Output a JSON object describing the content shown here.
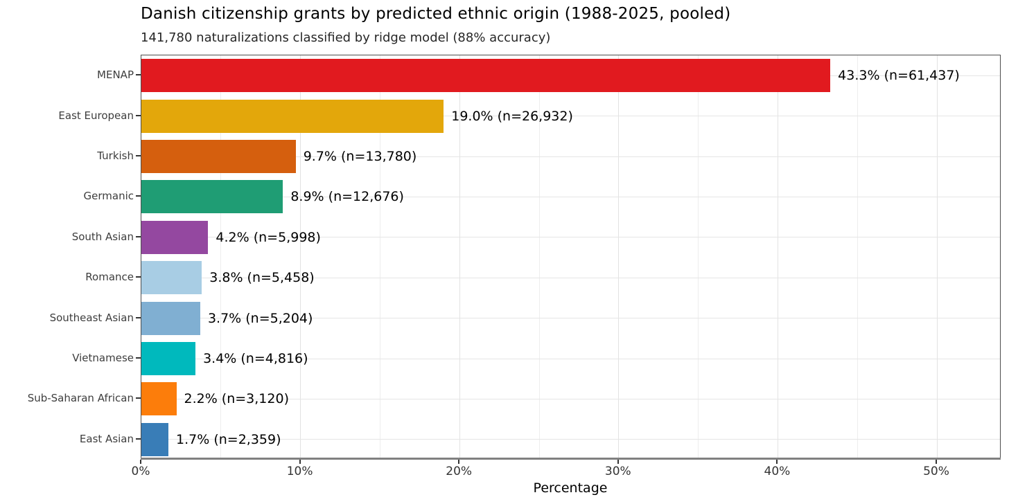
{
  "chart_data": {
    "type": "bar",
    "orientation": "horizontal",
    "title": "Danish citizenship grants by predicted ethnic origin (1988-2025, pooled)",
    "subtitle": "141,780 naturalizations classified by ridge model (88% accuracy)",
    "xlabel": "Percentage",
    "ylabel": "",
    "xlim": [
      0,
      54.05
    ],
    "grid": true,
    "legend_position": "none",
    "categories": [
      "MENAP",
      "East European",
      "Turkish",
      "Germanic",
      "South Asian",
      "Romance",
      "Southeast Asian",
      "Vietnamese",
      "Sub-Saharan African",
      "East Asian"
    ],
    "values": [
      43.3,
      19.0,
      9.7,
      8.9,
      4.2,
      3.8,
      3.7,
      3.4,
      2.2,
      1.7
    ],
    "counts": [
      61437,
      26932,
      13780,
      12676,
      5998,
      5458,
      5204,
      4816,
      3120,
      2359
    ],
    "bar_labels": [
      "43.3% (n=61,437)",
      "19.0% (n=26,932)",
      "9.7% (n=13,780)",
      "8.9% (n=12,676)",
      "4.2% (n=5,998)",
      "3.8% (n=5,458)",
      "3.7% (n=5,204)",
      "3.4% (n=4,816)",
      "2.2% (n=3,120)",
      "1.7% (n=2,359)"
    ],
    "colors": [
      "#e11a1f",
      "#e3a70b",
      "#d55f0e",
      "#1f9d74",
      "#9448a0",
      "#a8cde4",
      "#80afd2",
      "#00b9bd",
      "#fc7d0b",
      "#397db7"
    ],
    "x_ticks": [
      {
        "value": 0,
        "label": "0%"
      },
      {
        "value": 10,
        "label": "10%"
      },
      {
        "value": 20,
        "label": "20%"
      },
      {
        "value": 30,
        "label": "30%"
      },
      {
        "value": 40,
        "label": "40%"
      },
      {
        "value": 50,
        "label": "50%"
      }
    ],
    "x_minor_ticks": [
      5,
      15,
      25,
      35,
      45
    ],
    "style": {
      "grid_major_color": "#e2e2e2",
      "grid_minor_color": "#ededed",
      "panel_border_color": "#4d4d4d",
      "axis_line_color": "#808080",
      "tick_color": "#333333",
      "label_color": "#000000"
    }
  }
}
